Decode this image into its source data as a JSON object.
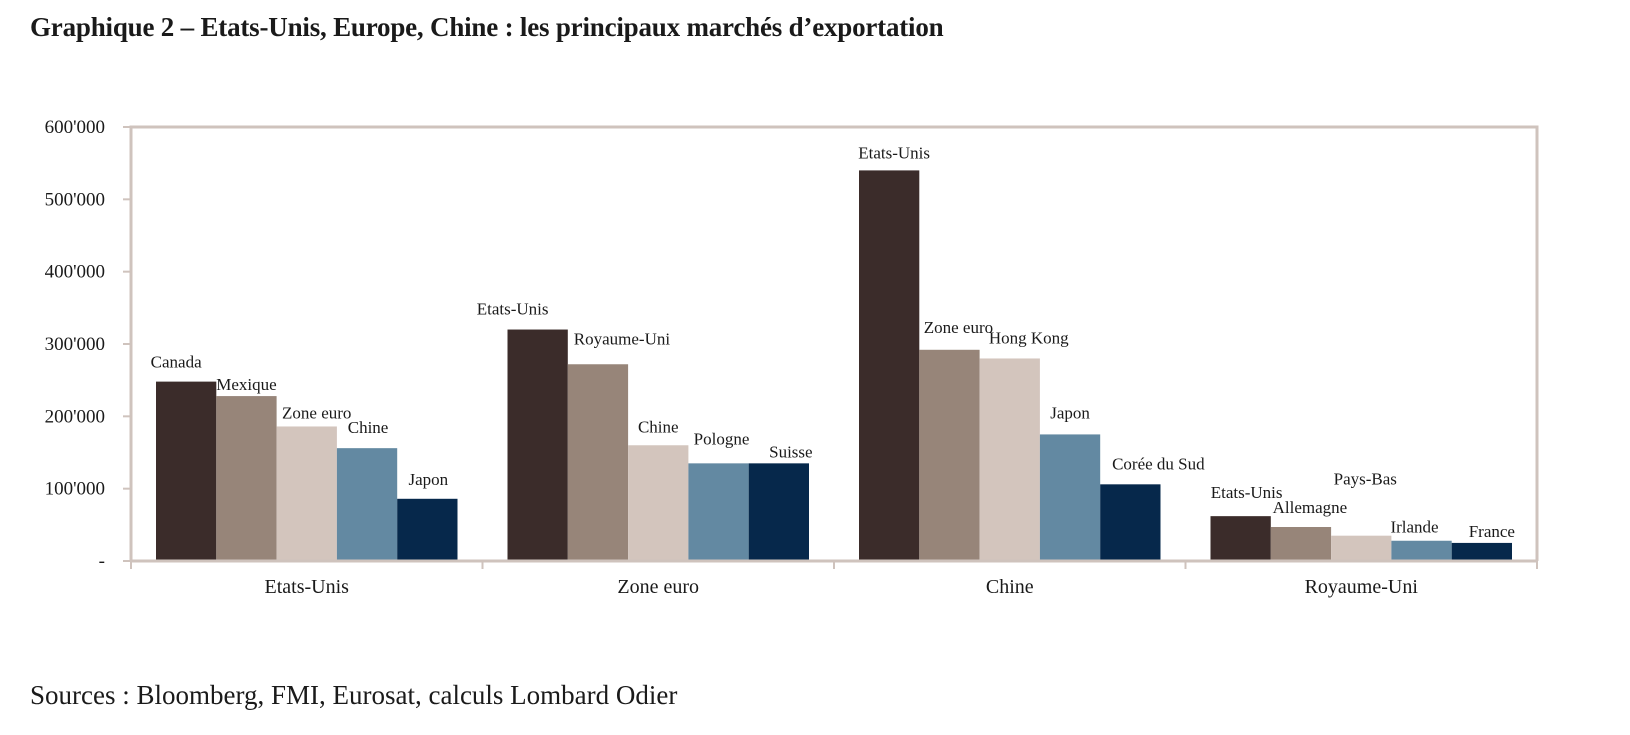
{
  "title": "Graphique 2 – Etats-Unis, Europe, Chine : les principaux marchés d’exportation",
  "source": "Sources : Bloomberg, FMI, Eurosat, calculs Lombard Odier",
  "colors": {
    "frame": "#cfc3bd",
    "palette": [
      "#3b2c2a",
      "#978579",
      "#d3c5bd",
      "#6389a2",
      "#06284b"
    ]
  },
  "chart_data": {
    "type": "bar",
    "ylim": [
      0,
      600000
    ],
    "y_ticks": [
      {
        "value": 0,
        "label": "-"
      },
      {
        "value": 100000,
        "label": "100'000"
      },
      {
        "value": 200000,
        "label": "200'000"
      },
      {
        "value": 300000,
        "label": "300'000"
      },
      {
        "value": 400000,
        "label": "400'000"
      },
      {
        "value": 500000,
        "label": "500'000"
      },
      {
        "value": 600000,
        "label": "600'000"
      }
    ],
    "grid": false,
    "legend": "none",
    "groups": [
      {
        "name": "Etats-Unis",
        "bars": [
          {
            "label": "Canada",
            "value": 248000
          },
          {
            "label": "Mexique",
            "value": 228000
          },
          {
            "label": "Zone euro",
            "value": 186000
          },
          {
            "label": "Chine",
            "value": 156000
          },
          {
            "label": "Japon",
            "value": 86000
          }
        ]
      },
      {
        "name": "Zone euro",
        "bars": [
          {
            "label": "Etats-Unis",
            "value": 320000
          },
          {
            "label": "Royaume-Uni",
            "value": 272000
          },
          {
            "label": "Chine",
            "value": 160000
          },
          {
            "label": "Pologne",
            "value": 135000
          },
          {
            "label": "Suisse",
            "value": 135000
          }
        ]
      },
      {
        "name": "Chine",
        "bars": [
          {
            "label": "Etats-Unis",
            "value": 540000
          },
          {
            "label": "Zone euro",
            "value": 292000
          },
          {
            "label": "Hong Kong",
            "value": 280000
          },
          {
            "label": "Japon",
            "value": 175000
          },
          {
            "label": "Corée du Sud",
            "value": 106000
          }
        ]
      },
      {
        "name": "Royaume-Uni",
        "bars": [
          {
            "label": "Etats-Unis",
            "value": 62000
          },
          {
            "label": "Allemagne",
            "value": 47000
          },
          {
            "label": "Pays-Bas",
            "value": 35000
          },
          {
            "label": "Irlande",
            "value": 28000
          },
          {
            "label": "France",
            "value": 25000
          }
        ]
      }
    ]
  }
}
